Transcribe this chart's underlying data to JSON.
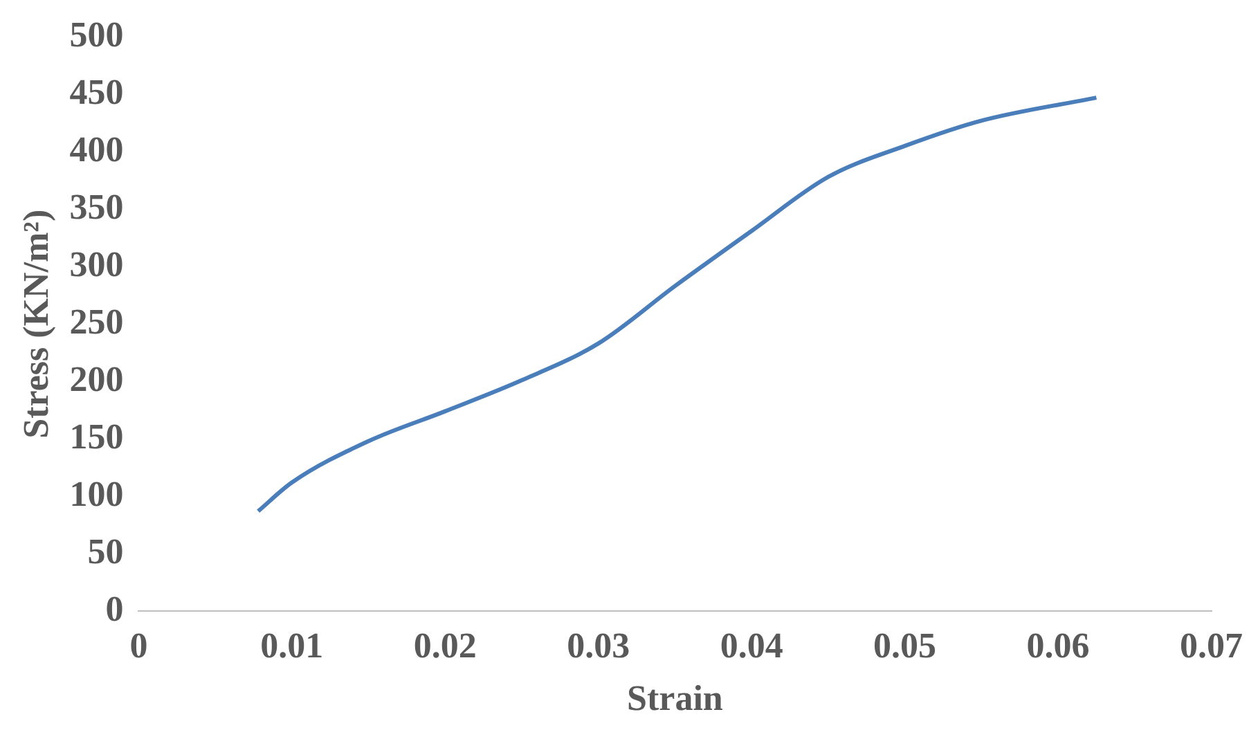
{
  "chart_data": {
    "type": "line",
    "xlabel": "Strain",
    "ylabel": "Stress (KN/m²)",
    "x": [
      0.0078,
      0.01,
      0.015,
      0.02,
      0.025,
      0.03,
      0.035,
      0.04,
      0.045,
      0.05,
      0.055,
      0.0625
    ],
    "series": [
      {
        "color": "#4a7ebb",
        "values": [
          87,
          112,
          148,
          174,
          201,
          233,
          283,
          331,
          378,
          405,
          427,
          447
        ]
      }
    ],
    "xlim": [
      0,
      0.07
    ],
    "xticks": [
      0,
      0.01,
      0.02,
      0.03,
      0.04,
      0.05,
      0.06,
      0.07
    ],
    "ylim": [
      0,
      500
    ],
    "yticks": [
      0,
      50,
      100,
      150,
      200,
      250,
      300,
      350,
      400,
      450,
      500
    ],
    "grid": false,
    "legend": false,
    "marker": "none",
    "line_style": "solid"
  }
}
